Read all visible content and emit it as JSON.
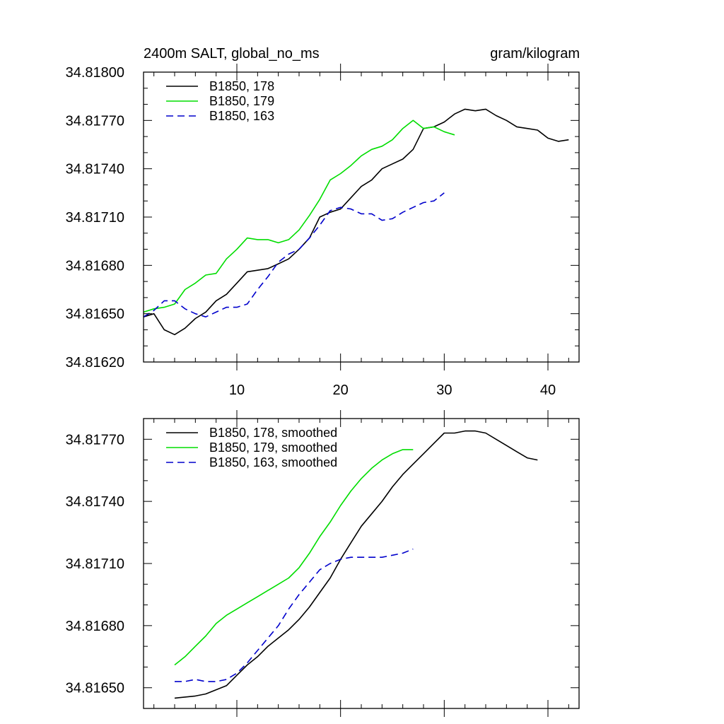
{
  "chart_data": [
    {
      "type": "line",
      "title": "2400m SALT, global_no_ms",
      "units": "gram/kilogram",
      "xlim": [
        1,
        43
      ],
      "ylim": [
        34.8162,
        34.818
      ],
      "x_ticks": [
        10,
        20,
        30,
        40
      ],
      "x_tick_labels": [
        "10",
        "20",
        "30",
        "40"
      ],
      "y_ticks": [
        34.8162,
        34.8165,
        34.8168,
        34.8171,
        34.8174,
        34.8177,
        34.818
      ],
      "y_tick_labels": [
        "34.81620",
        "34.81650",
        "34.81680",
        "34.81710",
        "34.81740",
        "34.81770",
        "34.81800"
      ],
      "series": [
        {
          "name": "B1850, 178",
          "color": "#000000",
          "dash": "solid",
          "x": [
            1,
            2,
            3,
            4,
            5,
            6,
            7,
            8,
            9,
            10,
            11,
            12,
            13,
            14,
            15,
            16,
            17,
            18,
            19,
            20,
            21,
            22,
            23,
            24,
            25,
            26,
            27,
            28,
            29,
            30,
            31,
            32,
            33,
            34,
            35,
            36,
            37,
            38,
            39,
            40,
            41,
            42
          ],
          "y": [
            34.81648,
            34.8165,
            34.8164,
            34.81637,
            34.81641,
            34.81647,
            34.81651,
            34.81658,
            34.81662,
            34.81669,
            34.81676,
            34.81677,
            34.81678,
            34.81681,
            34.81684,
            34.8169,
            34.81697,
            34.8171,
            34.81713,
            34.81715,
            34.81722,
            34.81729,
            34.81733,
            34.8174,
            34.81743,
            34.81746,
            34.81752,
            34.81765,
            34.81766,
            34.81769,
            34.81774,
            34.81777,
            34.81776,
            34.81777,
            34.81773,
            34.8177,
            34.81766,
            34.81765,
            34.81764,
            34.81759,
            34.81757,
            34.81758
          ]
        },
        {
          "name": "B1850, 179",
          "color": "#00dd00",
          "dash": "solid",
          "x": [
            1,
            2,
            3,
            4,
            5,
            6,
            7,
            8,
            9,
            10,
            11,
            12,
            13,
            14,
            15,
            16,
            17,
            18,
            19,
            20,
            21,
            22,
            23,
            24,
            25,
            26,
            27,
            28,
            29,
            30,
            31
          ],
          "y": [
            34.81651,
            34.81653,
            34.81654,
            34.81656,
            34.81665,
            34.81669,
            34.81674,
            34.81675,
            34.81684,
            34.8169,
            34.81697,
            34.81696,
            34.81696,
            34.81694,
            34.81696,
            34.81702,
            34.81711,
            34.81721,
            34.81733,
            34.81737,
            34.81742,
            34.81748,
            34.81752,
            34.81754,
            34.81758,
            34.81765,
            34.8177,
            34.81765,
            34.81766,
            34.81763,
            34.81761
          ]
        },
        {
          "name": "B1850, 163",
          "color": "#0000cc",
          "dash": "dashed",
          "x": [
            1,
            2,
            3,
            4,
            5,
            6,
            7,
            8,
            9,
            10,
            11,
            12,
            13,
            14,
            15,
            16,
            17,
            18,
            19,
            20,
            21,
            22,
            23,
            24,
            25,
            26,
            27,
            28,
            29,
            30
          ],
          "y": [
            34.81648,
            34.81652,
            34.81658,
            34.81658,
            34.81653,
            34.8165,
            34.81648,
            34.81651,
            34.81654,
            34.81654,
            34.81656,
            34.81665,
            34.81673,
            34.81682,
            34.81687,
            34.8169,
            34.81697,
            34.81705,
            34.81714,
            34.81716,
            34.81715,
            34.81712,
            34.81712,
            34.81708,
            34.81709,
            34.81713,
            34.81716,
            34.81719,
            34.8172,
            34.81725
          ]
        }
      ]
    },
    {
      "type": "line",
      "title": "",
      "xlim": [
        1,
        43
      ],
      "ylim": [
        34.8164,
        34.8178
      ],
      "x_ticks": [
        10,
        20,
        30,
        40
      ],
      "y_ticks": [
        34.8165,
        34.8168,
        34.8171,
        34.8174,
        34.8177
      ],
      "y_tick_labels": [
        "34.81650",
        "34.81680",
        "34.81710",
        "34.81740",
        "34.81770"
      ],
      "series": [
        {
          "name": "B1850, 178, smoothed",
          "color": "#000000",
          "dash": "solid",
          "x": [
            4,
            6,
            7,
            9,
            10,
            11,
            12,
            13,
            14,
            15,
            16,
            17,
            18,
            19,
            20,
            21,
            22,
            23,
            24,
            25,
            26,
            27,
            28,
            29,
            30,
            31,
            32,
            33,
            34,
            35,
            36,
            37,
            38,
            39
          ],
          "y": [
            34.81645,
            34.81646,
            34.81647,
            34.81651,
            34.81656,
            34.81661,
            34.81665,
            34.8167,
            34.81674,
            34.81678,
            34.81683,
            34.81689,
            34.81696,
            34.81703,
            34.81712,
            34.8172,
            34.81728,
            34.81734,
            34.8174,
            34.81747,
            34.81753,
            34.81758,
            34.81763,
            34.81768,
            34.81773,
            34.81773,
            34.81774,
            34.81774,
            34.81773,
            34.8177,
            34.81767,
            34.81764,
            34.81761,
            34.8176
          ]
        },
        {
          "name": "B1850, 179, smoothed",
          "color": "#00dd00",
          "dash": "solid",
          "x": [
            4,
            5,
            6,
            7,
            8,
            9,
            10,
            11,
            12,
            13,
            14,
            15,
            16,
            17,
            18,
            19,
            20,
            21,
            22,
            23,
            24,
            25,
            26,
            27
          ],
          "y": [
            34.81661,
            34.81665,
            34.8167,
            34.81675,
            34.81681,
            34.81685,
            34.81688,
            34.81691,
            34.81694,
            34.81697,
            34.817,
            34.81703,
            34.81708,
            34.81715,
            34.81723,
            34.8173,
            34.81738,
            34.81745,
            34.81751,
            34.81756,
            34.8176,
            34.81763,
            34.81765,
            34.81765
          ]
        },
        {
          "name": "B1850, 163, smoothed",
          "color": "#0000cc",
          "dash": "dashed",
          "x": [
            4,
            5,
            6,
            7,
            8,
            9,
            10,
            11,
            12,
            13,
            14,
            15,
            16,
            17,
            18,
            19,
            20,
            21,
            22,
            23,
            24,
            25,
            26,
            27
          ],
          "y": [
            34.81653,
            34.81653,
            34.81654,
            34.81653,
            34.81653,
            34.81654,
            34.81657,
            34.81662,
            34.81668,
            34.81674,
            34.8168,
            34.81688,
            34.81695,
            34.81701,
            34.81707,
            34.8171,
            34.81712,
            34.81713,
            34.81713,
            34.81713,
            34.81713,
            34.81714,
            34.81715,
            34.81717
          ]
        }
      ]
    }
  ]
}
